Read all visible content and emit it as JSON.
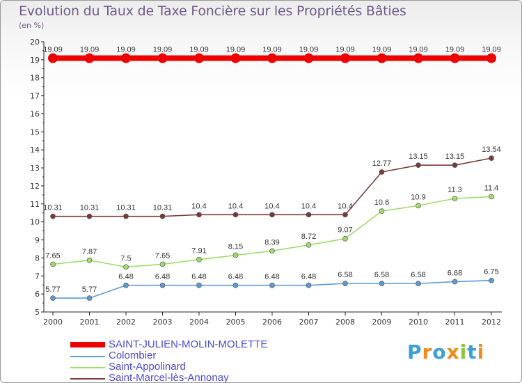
{
  "chart_data": {
    "type": "line",
    "title": "Evolution du Taux de Taxe Foncière sur les Propriétés Bâties",
    "subtitle": "(en %)",
    "xlabel": "",
    "ylabel": "",
    "ylim": [
      5,
      20
    ],
    "yticks": [
      5,
      6,
      7,
      8,
      9,
      10,
      11,
      12,
      13,
      14,
      15,
      16,
      17,
      18,
      19,
      20
    ],
    "categories": [
      "2000",
      "2001",
      "2002",
      "2003",
      "2004",
      "2005",
      "2006",
      "2007",
      "2008",
      "2009",
      "2010",
      "2011",
      "2012"
    ],
    "series": [
      {
        "name": "SAINT-JULIEN-MOLIN-MOLETTE",
        "color": "#ee0000",
        "values": [
          19.09,
          19.09,
          19.09,
          19.09,
          19.09,
          19.09,
          19.09,
          19.09,
          19.09,
          19.09,
          19.09,
          19.09,
          19.09
        ],
        "labels": [
          "19.09",
          "19.09",
          "19.09",
          "19.09",
          "19.09",
          "19.09",
          "19.09",
          "19.09",
          "19.09",
          "19.09",
          "19.09",
          "19.09",
          "19.09"
        ]
      },
      {
        "name": "Colombier",
        "color": "#5b9bd5",
        "values": [
          5.77,
          5.77,
          6.48,
          6.48,
          6.48,
          6.48,
          6.48,
          6.48,
          6.58,
          6.58,
          6.58,
          6.68,
          6.75
        ],
        "labels": [
          "5.77",
          "5.77",
          "6.48",
          "6.48",
          "6.48",
          "6.48",
          "6.48",
          "6.48",
          "6.58",
          "6.58",
          "6.58",
          "6.68",
          "6.75"
        ]
      },
      {
        "name": "Saint-Appolinard",
        "color": "#9fdc6a",
        "values": [
          7.65,
          7.87,
          7.5,
          7.65,
          7.91,
          8.15,
          8.39,
          8.72,
          9.07,
          10.6,
          10.9,
          11.3,
          11.4
        ],
        "labels": [
          "7.65",
          "7.87",
          "7.5",
          "7.65",
          "7.91",
          "8.15",
          "8.39",
          "8.72",
          "9.07",
          "10.6",
          "10.9",
          "11.3",
          "11.4"
        ]
      },
      {
        "name": "Saint-Marcel-lès-Annonay",
        "color": "#7b3a3a",
        "values": [
          10.31,
          10.31,
          10.31,
          10.31,
          10.4,
          10.4,
          10.4,
          10.4,
          10.4,
          12.77,
          13.15,
          13.15,
          13.54
        ],
        "labels": [
          "10.31",
          "10.31",
          "10.31",
          "10.31",
          "10.4",
          "10.4",
          "10.4",
          "10.4",
          "10.4",
          "12.77",
          "13.15",
          "13.15",
          "13.54"
        ]
      }
    ],
    "legend_position": "bottom-left",
    "grid": false
  },
  "logo": {
    "text": "Proxiti",
    "colors": [
      "#3aa0d8",
      "#f08a1a",
      "#3aa0d8",
      "#f08a1a",
      "#8ac83a",
      "#3aa0d8",
      "#f08a1a"
    ]
  }
}
